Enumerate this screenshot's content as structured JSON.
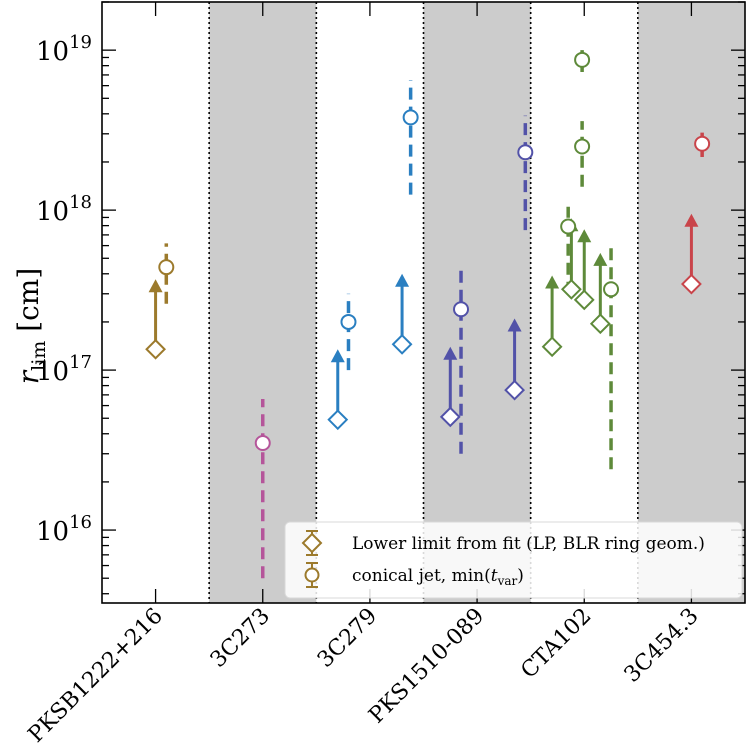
{
  "chart_data": {
    "type": "scatter",
    "title": "",
    "xlabel": "",
    "ylabel": {
      "main": "r",
      "sub": "lim",
      "unit": " [cm]"
    },
    "yscale": "log",
    "ylim": [
      3500000000000000.0,
      2e+19
    ],
    "yticks": [
      {
        "value": 1e+16,
        "base": "10",
        "exp": "16"
      },
      {
        "value": 1e+17,
        "base": "10",
        "exp": "17"
      },
      {
        "value": 1e+18,
        "base": "10",
        "exp": "18"
      },
      {
        "value": 1e+19,
        "base": "10",
        "exp": "19"
      }
    ],
    "categories": [
      "PKSB1222+216",
      "3C273",
      "3C279",
      "PKS1510-089",
      "CTA102",
      "3C454.3"
    ],
    "shaded_bands": [
      1,
      3,
      5
    ],
    "colors": {
      "PKSB1222+216": "#9c7a2c",
      "3C273": "#b5559a",
      "3C279": "#2a7fc1",
      "PKS1510-089": "#5252a8",
      "CTA102": "#5e8a3a",
      "3C454.3": "#c9444a",
      "band": "#cccccc"
    },
    "series": [
      {
        "name": "Lower limit from fit (LP, BLR ring geom.)",
        "marker": "diamond",
        "points": [
          {
            "source": "PKSB1222+216",
            "offset": 0.0,
            "value": 1.35e+17,
            "arrow_to": 3.7e+17
          },
          {
            "source": "3C279",
            "offset": -0.3,
            "value": 4.9e+16,
            "arrow_to": 1.35e+17
          },
          {
            "source": "3C279",
            "offset": 0.3,
            "value": 1.45e+17,
            "arrow_to": 4e+17
          },
          {
            "source": "PKS1510-089",
            "offset": -0.25,
            "value": 5.1e+16,
            "arrow_to": 1.4e+17
          },
          {
            "source": "PKS1510-089",
            "offset": 0.35,
            "value": 7.5e+16,
            "arrow_to": 2.1e+17
          },
          {
            "source": "CTA102",
            "offset": -0.3,
            "value": 1.4e+17,
            "arrow_to": 3.9e+17
          },
          {
            "source": "CTA102",
            "offset": -0.12,
            "value": 3.2e+17,
            "arrow_to": 8.9e+17
          },
          {
            "source": "CTA102",
            "offset": 0.0,
            "value": 2.75e+17,
            "arrow_to": 7.6e+17
          },
          {
            "source": "CTA102",
            "offset": 0.15,
            "value": 1.95e+17,
            "arrow_to": 5.4e+17
          },
          {
            "source": "3C454.3",
            "offset": 0.0,
            "value": 3.45e+17,
            "arrow_to": 9.5e+17
          }
        ]
      },
      {
        "name": "conical jet, min(t_var)",
        "marker": "circle",
        "points": [
          {
            "source": "PKSB1222+216",
            "offset": 0.1,
            "value": 4.4e+17,
            "err_low": 2.6e+17,
            "err_high": 6.2e+17
          },
          {
            "source": "3C273",
            "offset": 0.0,
            "value": 3.5e+16,
            "err_low": 5000000000000000.0,
            "err_high": 6.6e+16
          },
          {
            "source": "3C279",
            "offset": -0.2,
            "value": 2e+17,
            "err_low": 1e+17,
            "err_high": 3e+17
          },
          {
            "source": "3C279",
            "offset": 0.38,
            "value": 3.8e+18,
            "err_low": 1.25e+18,
            "err_high": 6.5e+18
          },
          {
            "source": "PKS1510-089",
            "offset": -0.15,
            "value": 2.4e+17,
            "err_low": 3e+16,
            "err_high": 4.4e+17
          },
          {
            "source": "PKS1510-089",
            "offset": 0.45,
            "value": 2.3e+18,
            "err_low": 7.5e+17,
            "err_high": 3.9e+18
          },
          {
            "source": "CTA102",
            "offset": -0.15,
            "value": 7.9e+17,
            "err_low": 3e+17,
            "err_high": 1.05e+18
          },
          {
            "source": "CTA102",
            "offset": -0.02,
            "value": 2.5e+18,
            "err_low": 1.4e+18,
            "err_high": 3.6e+18
          },
          {
            "source": "CTA102",
            "offset": -0.02,
            "value": 8.7e+18,
            "err_low": 7.3e+18,
            "err_high": 1e+19
          },
          {
            "source": "CTA102",
            "offset": 0.25,
            "value": 3.2e+17,
            "err_low": 2.4e+16,
            "err_high": 6e+17
          },
          {
            "source": "3C454.3",
            "offset": 0.1,
            "value": 2.6e+18,
            "err_low": 2.15e+18,
            "err_high": 3.05e+18
          }
        ]
      }
    ],
    "legend": {
      "position": "lower-right",
      "entries": [
        {
          "label": "Lower limit from fit (LP, BLR ring geom.)",
          "marker": "diamond"
        },
        {
          "label_main": "conical jet, min(",
          "label_var": "t",
          "label_sub": "var",
          "label_end": ")",
          "marker": "circle"
        }
      ]
    }
  }
}
